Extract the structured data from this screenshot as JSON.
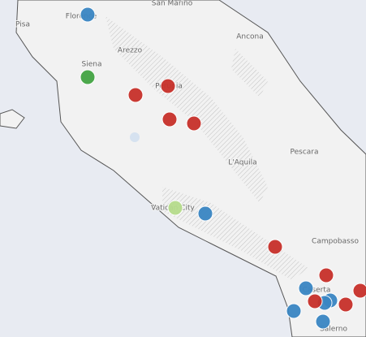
{
  "places": [
    {
      "label": "San Marino"
    },
    {
      "label": "Florence"
    },
    {
      "label": "Pisa"
    },
    {
      "label": "Ancona"
    },
    {
      "label": "Arezzo"
    },
    {
      "label": "Siena"
    },
    {
      "label": "Perugia"
    },
    {
      "label": "Pescara"
    },
    {
      "label": "L'Aquila"
    },
    {
      "label": "Vatican City"
    },
    {
      "label": "Campobasso"
    },
    {
      "label": "Caserta"
    },
    {
      "label": "Salerno"
    }
  ]
}
